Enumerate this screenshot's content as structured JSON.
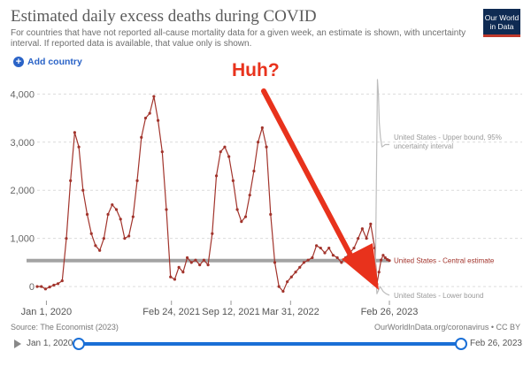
{
  "header": {
    "title": "Estimated daily excess deaths during COVID",
    "subtitle": "For countries that have not reported all-cause mortality data for a given week, an estimate is shown, with uncertainty interval. If reported data is available, that value only is shown.",
    "logo_line1": "Our World",
    "logo_line2": "in Data"
  },
  "controls": {
    "add_country": "Add country"
  },
  "footer": {
    "source": "Source: The Economist (2023)",
    "credit": "OurWorldInData.org/coronavirus • CC BY"
  },
  "timeline": {
    "start_label": "Jan 1, 2020",
    "end_label": "Feb 26, 2023"
  },
  "annotation": {
    "text": "Huh?"
  },
  "colors": {
    "central": "#a2342c",
    "bounds": "#bdbdbd",
    "annotation": "#e8321c",
    "reference_line": "#9a9a9a"
  },
  "chart_data": {
    "type": "line",
    "title": "Estimated daily excess deaths during COVID",
    "ylim": [
      -200,
      4300
    ],
    "y_ticks": [
      0,
      1000,
      2000,
      3000,
      4000
    ],
    "y_tick_labels": [
      "0",
      "1,000",
      "2,000",
      "3,000",
      "4,000"
    ],
    "x_tick_labels": [
      "Jan 1, 2020",
      "Feb 24, 2021",
      "Sep 12, 2021",
      "Mar 31, 2022",
      "Feb 26, 2023"
    ],
    "x_tick_dates": [
      "2020-01-01",
      "2021-02-24",
      "2021-09-12",
      "2022-03-31",
      "2023-02-26"
    ],
    "x_start": "2019-12-01",
    "grid": "horizontal dashed",
    "series": [
      {
        "name": "United States - Central estimate",
        "label": "United States - Central estimate",
        "style": "line with markers",
        "points": [
          [
            "2019-12-01",
            0
          ],
          [
            "2019-12-15",
            0
          ],
          [
            "2019-12-29",
            -50
          ],
          [
            "2020-01-12",
            -10
          ],
          [
            "2020-01-26",
            30
          ],
          [
            "2020-02-09",
            60
          ],
          [
            "2020-02-23",
            120
          ],
          [
            "2020-03-08",
            1000
          ],
          [
            "2020-03-22",
            2200
          ],
          [
            "2020-04-05",
            3200
          ],
          [
            "2020-04-19",
            2900
          ],
          [
            "2020-05-03",
            2000
          ],
          [
            "2020-05-17",
            1500
          ],
          [
            "2020-05-31",
            1100
          ],
          [
            "2020-06-14",
            850
          ],
          [
            "2020-06-28",
            750
          ],
          [
            "2020-07-12",
            1000
          ],
          [
            "2020-07-26",
            1500
          ],
          [
            "2020-08-09",
            1700
          ],
          [
            "2020-08-23",
            1600
          ],
          [
            "2020-09-06",
            1400
          ],
          [
            "2020-09-20",
            1000
          ],
          [
            "2020-10-04",
            1050
          ],
          [
            "2020-10-18",
            1450
          ],
          [
            "2020-11-01",
            2200
          ],
          [
            "2020-11-15",
            3100
          ],
          [
            "2020-11-29",
            3500
          ],
          [
            "2020-12-13",
            3600
          ],
          [
            "2020-12-27",
            3950
          ],
          [
            "2021-01-10",
            3450
          ],
          [
            "2021-01-24",
            2800
          ],
          [
            "2021-02-07",
            1600
          ],
          [
            "2021-02-21",
            200
          ],
          [
            "2021-03-07",
            150
          ],
          [
            "2021-03-21",
            400
          ],
          [
            "2021-04-04",
            300
          ],
          [
            "2021-04-18",
            600
          ],
          [
            "2021-05-02",
            500
          ],
          [
            "2021-05-16",
            550
          ],
          [
            "2021-05-30",
            450
          ],
          [
            "2021-06-13",
            550
          ],
          [
            "2021-06-27",
            450
          ],
          [
            "2021-07-11",
            1100
          ],
          [
            "2021-07-25",
            2300
          ],
          [
            "2021-08-08",
            2800
          ],
          [
            "2021-08-22",
            2900
          ],
          [
            "2021-09-05",
            2700
          ],
          [
            "2021-09-19",
            2200
          ],
          [
            "2021-10-03",
            1600
          ],
          [
            "2021-10-17",
            1350
          ],
          [
            "2021-10-31",
            1450
          ],
          [
            "2021-11-14",
            1900
          ],
          [
            "2021-11-28",
            2400
          ],
          [
            "2021-12-12",
            3000
          ],
          [
            "2021-12-26",
            3300
          ],
          [
            "2022-01-09",
            2900
          ],
          [
            "2022-01-23",
            1500
          ],
          [
            "2022-02-06",
            500
          ],
          [
            "2022-02-20",
            0
          ],
          [
            "2022-03-06",
            -100
          ],
          [
            "2022-03-20",
            100
          ],
          [
            "2022-04-03",
            200
          ],
          [
            "2022-04-17",
            300
          ],
          [
            "2022-05-01",
            400
          ],
          [
            "2022-05-15",
            500
          ],
          [
            "2022-05-29",
            550
          ],
          [
            "2022-06-12",
            600
          ],
          [
            "2022-06-26",
            850
          ],
          [
            "2022-07-10",
            800
          ],
          [
            "2022-07-24",
            700
          ],
          [
            "2022-08-07",
            800
          ],
          [
            "2022-08-21",
            650
          ],
          [
            "2022-09-04",
            600
          ],
          [
            "2022-09-18",
            500
          ],
          [
            "2022-10-02",
            600
          ],
          [
            "2022-10-16",
            700
          ],
          [
            "2022-10-30",
            800
          ],
          [
            "2022-11-13",
            1000
          ],
          [
            "2022-11-27",
            1200
          ],
          [
            "2022-12-11",
            1000
          ],
          [
            "2022-12-25",
            1300
          ],
          [
            "2023-01-08",
            800
          ],
          [
            "2023-01-15",
            50
          ],
          [
            "2023-01-22",
            300
          ],
          [
            "2023-01-29",
            550
          ],
          [
            "2023-02-05",
            650
          ],
          [
            "2023-02-12",
            600
          ],
          [
            "2023-02-19",
            560
          ],
          [
            "2023-02-26",
            540
          ]
        ]
      },
      {
        "name": "United States - Upper bound, 95% uncertainty interval",
        "label": "United States - Upper bound, 95%\nuncertainty interval",
        "style": "line",
        "points": [
          [
            "2023-01-10",
            300
          ],
          [
            "2023-01-14",
            2500
          ],
          [
            "2023-01-17",
            4300
          ],
          [
            "2023-01-20",
            4000
          ],
          [
            "2023-01-23",
            3400
          ],
          [
            "2023-01-27",
            3100
          ],
          [
            "2023-02-01",
            2900
          ],
          [
            "2023-02-12",
            2950
          ],
          [
            "2023-02-26",
            2950
          ]
        ]
      },
      {
        "name": "United States - Lower bound",
        "label": "United States - Lower bound",
        "style": "line",
        "points": [
          [
            "2023-01-10",
            400
          ],
          [
            "2023-01-15",
            -150
          ],
          [
            "2023-01-20",
            -80
          ],
          [
            "2023-01-26",
            0
          ],
          [
            "2023-02-05",
            -100
          ],
          [
            "2023-02-15",
            -150
          ],
          [
            "2023-02-26",
            -180
          ]
        ]
      }
    ],
    "reference_line_value": 540
  }
}
